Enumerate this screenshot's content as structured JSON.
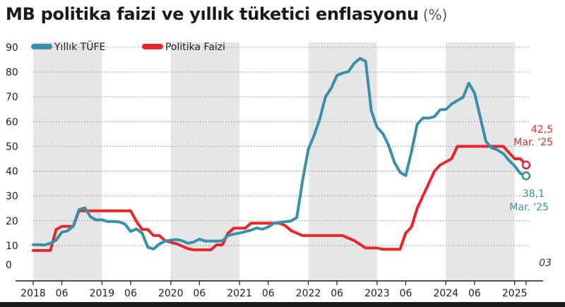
{
  "chart_data": {
    "type": "line",
    "title": "MB politika faizi ve yıllık tüketici enflasyonu",
    "unit": "(%)",
    "ylim": [
      0,
      90
    ],
    "y_ticks": [
      0,
      10,
      20,
      30,
      40,
      50,
      60,
      70,
      80,
      90
    ],
    "x_range": [
      "2018-01",
      "2025-03"
    ],
    "x_ticks": [
      {
        "label": "2018",
        "date": "2018-01"
      },
      {
        "label": "06",
        "date": "2018-06"
      },
      {
        "label": "2019",
        "date": "2019-01"
      },
      {
        "label": "06",
        "date": "2019-06"
      },
      {
        "label": "2020",
        "date": "2020-01"
      },
      {
        "label": "06",
        "date": "2020-06"
      },
      {
        "label": "2021",
        "date": "2021-01"
      },
      {
        "label": "06",
        "date": "2021-06"
      },
      {
        "label": "2022",
        "date": "2022-01"
      },
      {
        "label": "06",
        "date": "2022-06"
      },
      {
        "label": "2023",
        "date": "2023-01"
      },
      {
        "label": "06",
        "date": "2023-06"
      },
      {
        "label": "2024",
        "date": "2024-01"
      },
      {
        "label": "06",
        "date": "2024-06"
      },
      {
        "label": "2025",
        "date": "2025-01"
      },
      {
        "label": "03",
        "date": "2025-03"
      }
    ],
    "shaded_years": [
      2018,
      2020,
      2022,
      2024
    ],
    "grid": "horizontal-dotted",
    "legend": "top-left",
    "series": [
      {
        "name": "Yıllık TÜFE",
        "color": "#3a8fab",
        "points": [
          [
            "2018-01",
            10.3
          ],
          [
            "2018-02",
            10.3
          ],
          [
            "2018-03",
            10.2
          ],
          [
            "2018-04",
            10.9
          ],
          [
            "2018-05",
            12.2
          ],
          [
            "2018-06",
            15.4
          ],
          [
            "2018-07",
            15.9
          ],
          [
            "2018-08",
            17.9
          ],
          [
            "2018-09",
            24.5
          ],
          [
            "2018-10",
            25.2
          ],
          [
            "2018-11",
            21.6
          ],
          [
            "2018-12",
            20.3
          ],
          [
            "2019-01",
            20.4
          ],
          [
            "2019-02",
            19.7
          ],
          [
            "2019-03",
            19.7
          ],
          [
            "2019-04",
            19.5
          ],
          [
            "2019-05",
            18.7
          ],
          [
            "2019-06",
            15.7
          ],
          [
            "2019-07",
            16.7
          ],
          [
            "2019-08",
            15.0
          ],
          [
            "2019-09",
            9.3
          ],
          [
            "2019-10",
            8.6
          ],
          [
            "2019-11",
            10.6
          ],
          [
            "2019-12",
            11.8
          ],
          [
            "2020-01",
            12.2
          ],
          [
            "2020-02",
            12.4
          ],
          [
            "2020-03",
            11.9
          ],
          [
            "2020-04",
            10.9
          ],
          [
            "2020-05",
            11.4
          ],
          [
            "2020-06",
            12.6
          ],
          [
            "2020-07",
            11.8
          ],
          [
            "2020-08",
            11.8
          ],
          [
            "2020-09",
            11.8
          ],
          [
            "2020-10",
            11.9
          ],
          [
            "2020-11",
            14.0
          ],
          [
            "2020-12",
            14.6
          ],
          [
            "2021-01",
            15.0
          ],
          [
            "2021-02",
            15.6
          ],
          [
            "2021-03",
            16.2
          ],
          [
            "2021-04",
            17.1
          ],
          [
            "2021-05",
            16.6
          ],
          [
            "2021-06",
            17.5
          ],
          [
            "2021-07",
            19.0
          ],
          [
            "2021-08",
            19.3
          ],
          [
            "2021-09",
            19.6
          ],
          [
            "2021-10",
            19.9
          ],
          [
            "2021-11",
            21.3
          ],
          [
            "2021-12",
            36.1
          ],
          [
            "2022-01",
            48.7
          ],
          [
            "2022-02",
            54.4
          ],
          [
            "2022-03",
            61.1
          ],
          [
            "2022-04",
            70.0
          ],
          [
            "2022-05",
            73.5
          ],
          [
            "2022-06",
            78.6
          ],
          [
            "2022-07",
            79.6
          ],
          [
            "2022-08",
            80.2
          ],
          [
            "2022-09",
            83.5
          ],
          [
            "2022-10",
            85.5
          ],
          [
            "2022-11",
            84.4
          ],
          [
            "2022-12",
            64.3
          ],
          [
            "2023-01",
            57.7
          ],
          [
            "2023-02",
            55.2
          ],
          [
            "2023-03",
            50.5
          ],
          [
            "2023-04",
            43.7
          ],
          [
            "2023-05",
            39.6
          ],
          [
            "2023-06",
            38.2
          ],
          [
            "2023-07",
            47.8
          ],
          [
            "2023-08",
            58.9
          ],
          [
            "2023-09",
            61.5
          ],
          [
            "2023-10",
            61.4
          ],
          [
            "2023-11",
            62.0
          ],
          [
            "2023-12",
            64.8
          ],
          [
            "2024-01",
            64.9
          ],
          [
            "2024-02",
            67.1
          ],
          [
            "2024-03",
            68.5
          ],
          [
            "2024-04",
            69.8
          ],
          [
            "2024-05",
            75.5
          ],
          [
            "2024-06",
            71.6
          ],
          [
            "2024-07",
            61.8
          ],
          [
            "2024-08",
            52.0
          ],
          [
            "2024-09",
            49.4
          ],
          [
            "2024-10",
            48.6
          ],
          [
            "2024-11",
            47.1
          ],
          [
            "2024-12",
            44.4
          ],
          [
            "2025-01",
            42.1
          ],
          [
            "2025-02",
            39.1
          ],
          [
            "2025-03",
            38.1
          ]
        ]
      },
      {
        "name": "Politika Faizi",
        "color": "#e8262b",
        "points": [
          [
            "2018-01",
            8.0
          ],
          [
            "2018-04",
            8.0
          ],
          [
            "2018-05",
            16.5
          ],
          [
            "2018-06",
            17.75
          ],
          [
            "2018-07",
            17.75
          ],
          [
            "2018-08",
            17.75
          ],
          [
            "2018-09",
            24.0
          ],
          [
            "2019-06",
            24.0
          ],
          [
            "2019-07",
            19.75
          ],
          [
            "2019-08",
            16.5
          ],
          [
            "2019-09",
            16.5
          ],
          [
            "2019-10",
            14.0
          ],
          [
            "2019-11",
            14.0
          ],
          [
            "2019-12",
            12.0
          ],
          [
            "2020-01",
            11.25
          ],
          [
            "2020-02",
            10.75
          ],
          [
            "2020-03",
            9.75
          ],
          [
            "2020-04",
            8.75
          ],
          [
            "2020-05",
            8.25
          ],
          [
            "2020-06",
            8.25
          ],
          [
            "2020-08",
            8.25
          ],
          [
            "2020-09",
            10.25
          ],
          [
            "2020-10",
            10.25
          ],
          [
            "2020-11",
            15.0
          ],
          [
            "2020-12",
            17.0
          ],
          [
            "2021-02",
            17.0
          ],
          [
            "2021-03",
            19.0
          ],
          [
            "2021-08",
            19.0
          ],
          [
            "2021-09",
            18.0
          ],
          [
            "2021-10",
            16.0
          ],
          [
            "2021-11",
            15.0
          ],
          [
            "2021-12",
            14.0
          ],
          [
            "2022-07",
            14.0
          ],
          [
            "2022-08",
            13.0
          ],
          [
            "2022-09",
            12.0
          ],
          [
            "2022-10",
            10.5
          ],
          [
            "2022-11",
            9.0
          ],
          [
            "2023-01",
            9.0
          ],
          [
            "2023-02",
            8.5
          ],
          [
            "2023-05",
            8.5
          ],
          [
            "2023-06",
            15.0
          ],
          [
            "2023-07",
            17.5
          ],
          [
            "2023-08",
            25.0
          ],
          [
            "2023-09",
            30.0
          ],
          [
            "2023-10",
            35.0
          ],
          [
            "2023-11",
            40.0
          ],
          [
            "2023-12",
            42.5
          ],
          [
            "2024-02",
            45.0
          ],
          [
            "2024-03",
            50.0
          ],
          [
            "2024-11",
            50.0
          ],
          [
            "2024-12",
            47.5
          ],
          [
            "2025-01",
            45.0
          ],
          [
            "2025-02",
            45.0
          ],
          [
            "2025-03",
            42.5
          ]
        ]
      }
    ],
    "annotations": [
      {
        "series": "Politika Faizi",
        "value": "42,5",
        "label": "Mar. '25"
      },
      {
        "series": "Yıllık TÜFE",
        "value": "38,1",
        "label": "Mar. '25"
      }
    ]
  }
}
